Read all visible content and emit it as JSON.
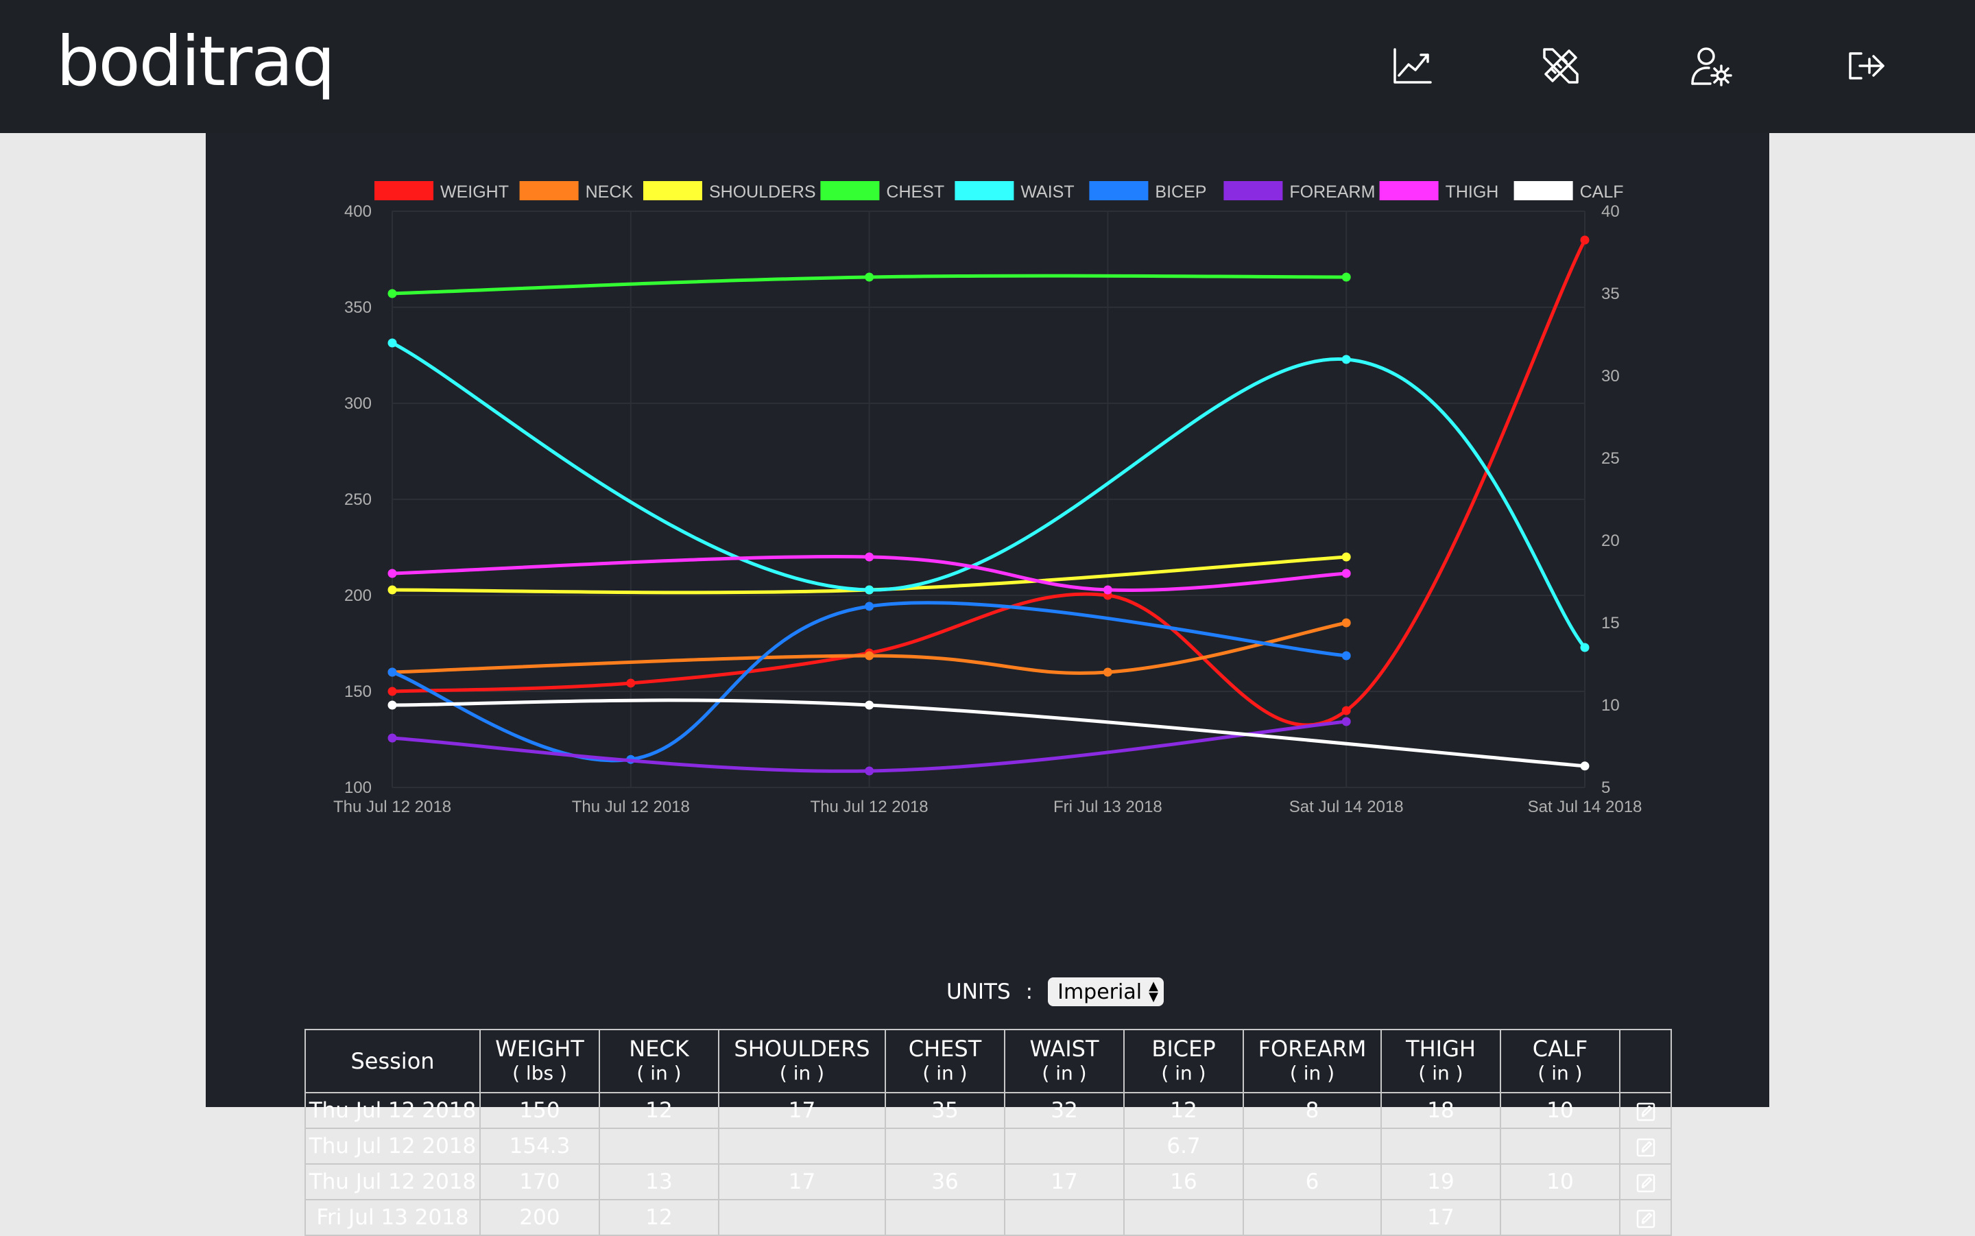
{
  "app": {
    "logo": "boditraq"
  },
  "nav": [
    {
      "name": "chart-nav-button",
      "icon": "chart-line-icon"
    },
    {
      "name": "measure-nav-button",
      "icon": "ruler-pencil-icon"
    },
    {
      "name": "profile-settings-nav-button",
      "icon": "user-gear-icon"
    },
    {
      "name": "logout-nav-button",
      "icon": "logout-icon"
    }
  ],
  "chart_data": {
    "type": "line",
    "categories": [
      "Thu Jul 12 2018",
      "Thu Jul 12 2018",
      "Thu Jul 12 2018",
      "Fri Jul 13 2018",
      "Sat Jul 14 2018",
      "Sat Jul 14 2018"
    ],
    "y_left": {
      "min": 100,
      "max": 400,
      "ticks": [
        100,
        150,
        200,
        250,
        300,
        350,
        400
      ]
    },
    "y_right": {
      "min": 5,
      "max": 40,
      "ticks": [
        5,
        10,
        15,
        20,
        25,
        30,
        35,
        40
      ]
    },
    "legend_position": "top",
    "grid": true,
    "series": [
      {
        "name": "WEIGHT",
        "color": "#ff1a1a",
        "axis": "left",
        "values": [
          150,
          154.3,
          170,
          200,
          140,
          385
        ]
      },
      {
        "name": "NECK",
        "color": "#ff7f1e",
        "axis": "right",
        "values": [
          12,
          null,
          13,
          12,
          15,
          null
        ]
      },
      {
        "name": "SHOULDERS",
        "color": "#ffff33",
        "axis": "right",
        "values": [
          17,
          null,
          17,
          null,
          19,
          null
        ]
      },
      {
        "name": "CHEST",
        "color": "#33ff33",
        "axis": "right",
        "values": [
          35,
          null,
          36,
          null,
          36,
          null
        ]
      },
      {
        "name": "WAIST",
        "color": "#33ffff",
        "axis": "right",
        "values": [
          32,
          null,
          17,
          null,
          31,
          13.5
        ]
      },
      {
        "name": "BICEP",
        "color": "#1f7fff",
        "axis": "right",
        "values": [
          12,
          6.7,
          16,
          null,
          13,
          null
        ]
      },
      {
        "name": "FOREARM",
        "color": "#8a2be2",
        "axis": "right",
        "values": [
          8,
          null,
          6,
          null,
          9,
          null
        ]
      },
      {
        "name": "THIGH",
        "color": "#ff33ff",
        "axis": "right",
        "values": [
          18,
          null,
          19,
          17,
          18,
          null
        ]
      },
      {
        "name": "CALF",
        "color": "#ffffff",
        "axis": "right",
        "values": [
          10,
          null,
          10,
          null,
          null,
          6.3
        ]
      }
    ]
  },
  "units": {
    "label": "UNITS",
    "colon": ":",
    "selected": "Imperial"
  },
  "table": {
    "headers": [
      {
        "label": "Session",
        "unit": ""
      },
      {
        "label": "WEIGHT",
        "unit": "( lbs )"
      },
      {
        "label": "NECK",
        "unit": "( in )"
      },
      {
        "label": "SHOULDERS",
        "unit": "( in )"
      },
      {
        "label": "CHEST",
        "unit": "( in )"
      },
      {
        "label": "WAIST",
        "unit": "( in )"
      },
      {
        "label": "BICEP",
        "unit": "( in )"
      },
      {
        "label": "FOREARM",
        "unit": "( in )"
      },
      {
        "label": "THIGH",
        "unit": "( in )"
      },
      {
        "label": "CALF",
        "unit": "( in )"
      },
      {
        "label": "",
        "unit": ""
      }
    ],
    "rows": [
      [
        "Thu Jul 12 2018",
        "150",
        "12",
        "17",
        "35",
        "32",
        "12",
        "8",
        "18",
        "10"
      ],
      [
        "Thu Jul 12 2018",
        "154.3",
        "",
        "",
        "",
        "",
        "6.7",
        "",
        "",
        ""
      ],
      [
        "Thu Jul 12 2018",
        "170",
        "13",
        "17",
        "36",
        "17",
        "16",
        "6",
        "19",
        "10"
      ],
      [
        "Fri Jul 13 2018",
        "200",
        "12",
        "",
        "",
        "",
        "",
        "",
        "17",
        ""
      ]
    ]
  }
}
